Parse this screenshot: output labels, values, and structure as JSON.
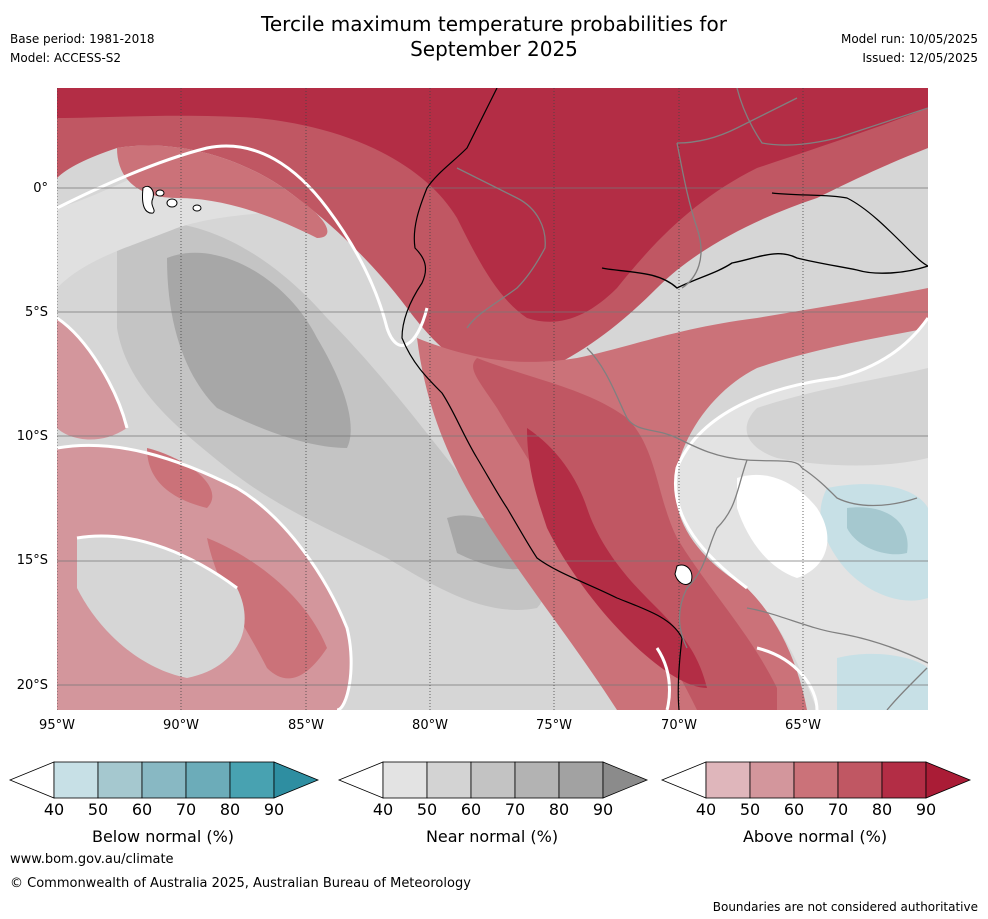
{
  "title": {
    "line1": "Tercile maximum temperature probabilities for",
    "line2": "September 2025"
  },
  "meta_left": {
    "base_period": "Base period: 1981-2018",
    "model": "Model: ACCESS-S2"
  },
  "meta_right": {
    "model_run": "Model run: 10/05/2025",
    "issued": "Issued: 12/05/2025"
  },
  "map": {
    "lat_labels": [
      "0°",
      "5°S",
      "10°S",
      "15°S",
      "20°S"
    ],
    "lon_labels": [
      "95°W",
      "90°W",
      "85°W",
      "80°W",
      "75°W",
      "70°W",
      "65°W"
    ]
  },
  "colorbars": [
    {
      "label": "Below normal (%)",
      "ticks": [
        "40",
        "50",
        "60",
        "70",
        "80",
        "90"
      ],
      "colors": [
        "#c7e0e6",
        "#a5c8cf",
        "#88b8c3",
        "#6cacb9",
        "#48a2b1",
        "#2e8ea1"
      ]
    },
    {
      "label": "Near normal (%)",
      "ticks": [
        "40",
        "50",
        "60",
        "70",
        "80",
        "90"
      ],
      "colors": [
        "#e3e3e3",
        "#d3d3d3",
        "#c3c3c3",
        "#b3b3b3",
        "#a2a2a2",
        "#8b8b8b"
      ]
    },
    {
      "label": "Above normal (%)",
      "ticks": [
        "40",
        "50",
        "60",
        "70",
        "80",
        "90"
      ],
      "colors": [
        "#dfb6bb",
        "#d3969c",
        "#cb7279",
        "#c05763",
        "#b32d45",
        "#aa1c36"
      ]
    }
  ],
  "footer": {
    "url": "www.bom.gov.au/climate",
    "copyright": "© Commonwealth of Australia 2025, Australian Bureau of Meteorology",
    "disclaimer": "Boundaries are not considered authoritative"
  }
}
